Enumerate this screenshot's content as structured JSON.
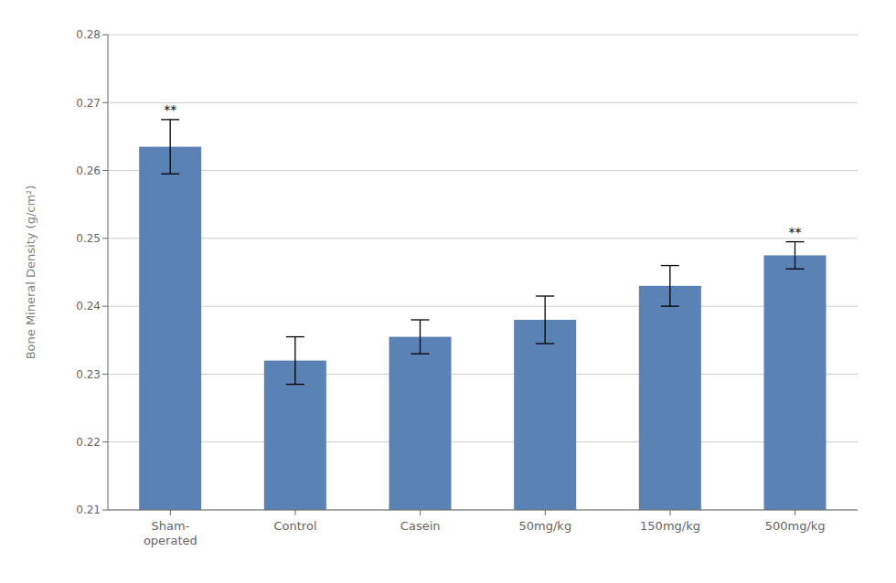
{
  "chart_data": {
    "type": "bar",
    "categories": [
      "Sham-\noperated",
      "Control",
      "Casein",
      "50mg/kg",
      "150mg/kg",
      "500mg/kg"
    ],
    "values": [
      0.2635,
      0.232,
      0.2355,
      0.238,
      0.243,
      0.2475
    ],
    "errors": [
      0.004,
      0.0035,
      0.0025,
      0.0035,
      0.003,
      0.002
    ],
    "annotations": [
      "**",
      null,
      null,
      null,
      null,
      "**"
    ],
    "color": "#5B82B4",
    "ylabel": "Bone Mineral Density (g/cm²)",
    "ylim": [
      0.21,
      0.28
    ],
    "yticks": [
      0.21,
      0.22,
      0.23,
      0.24,
      0.25,
      0.26,
      0.27,
      0.28
    ],
    "grid": true
  }
}
